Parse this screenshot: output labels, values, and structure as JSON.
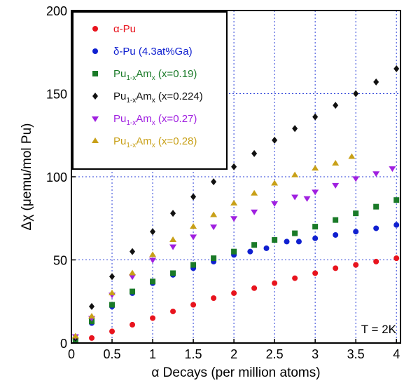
{
  "chart_data": {
    "type": "scatter",
    "xlabel": "α Decays (per million atoms)",
    "ylabel": "Δχ (μemu/mol Pu)",
    "xlim": [
      0,
      4.05
    ],
    "ylim": [
      0,
      200
    ],
    "xticks": [
      "0",
      "0.5",
      "1",
      "1.5",
      "2",
      "2.5",
      "3",
      "3.5",
      "4"
    ],
    "xtick_values": [
      0,
      0.5,
      1,
      1.5,
      2,
      2.5,
      3,
      3.5,
      4
    ],
    "yticks": [
      "0",
      "50",
      "100",
      "150",
      "200"
    ],
    "ytick_values": [
      0,
      50,
      100,
      150,
      200
    ],
    "grid": "dashed-blue",
    "legend_position": "top-left",
    "annotation": "T = 2K",
    "series": [
      {
        "name": "α-Pu",
        "prefix": "α-Pu",
        "sub1": "",
        "mid": "",
        "sub2": "",
        "suffix": "",
        "marker": "circle",
        "color": "#e8141e",
        "x": [
          0.25,
          0.5,
          0.75,
          1.0,
          1.25,
          1.5,
          1.75,
          2.0,
          2.25,
          2.5,
          2.75,
          3.0,
          3.25,
          3.5,
          3.75,
          4.0
        ],
        "y": [
          3,
          7,
          11,
          15,
          19,
          23,
          27,
          30,
          33,
          36,
          39,
          42,
          45,
          47,
          49,
          51
        ]
      },
      {
        "name": "δ-Pu (4.3at%Ga)",
        "prefix": "δ-Pu (4.3at%Ga)",
        "sub1": "",
        "mid": "",
        "sub2": "",
        "suffix": "",
        "marker": "circle",
        "color": "#1020d0",
        "x": [
          0.05,
          0.25,
          0.5,
          0.75,
          1.0,
          1.25,
          1.5,
          1.75,
          2.0,
          2.2,
          2.4,
          2.65,
          2.8,
          3.0,
          3.25,
          3.5,
          3.75,
          4.0
        ],
        "y": [
          2,
          12,
          22,
          30,
          36,
          41,
          45,
          49,
          53,
          55,
          57,
          61,
          61,
          63,
          65,
          67,
          69,
          71
        ]
      },
      {
        "name": "Pu1-xAmx (x=0.19)",
        "prefix": "Pu",
        "sub1": "1-x",
        "mid": "Am",
        "sub2": "x",
        "suffix": " (x=0.19)",
        "marker": "square",
        "color": "#1a7a28",
        "x": [
          0.05,
          0.25,
          0.5,
          0.75,
          1.0,
          1.25,
          1.5,
          1.75,
          2.0,
          2.25,
          2.5,
          2.75,
          3.0,
          3.25,
          3.5,
          3.75,
          4.0
        ],
        "y": [
          2,
          13,
          23,
          31,
          37,
          42,
          47,
          51,
          55,
          59,
          62,
          66,
          70,
          74,
          78,
          82,
          86
        ]
      },
      {
        "name": "Pu1-xAmx (x=0.224)",
        "prefix": "Pu",
        "sub1": "1-x",
        "mid": "Am",
        "sub2": "x",
        "suffix": " (x=0.224)",
        "marker": "diamond",
        "color": "#111111",
        "x": [
          0.05,
          0.25,
          0.5,
          0.75,
          1.0,
          1.25,
          1.5,
          1.75,
          2.0,
          2.25,
          2.5,
          2.75,
          3.0,
          3.25,
          3.5,
          3.75,
          4.0
        ],
        "y": [
          3,
          22,
          40,
          55,
          67,
          78,
          88,
          97,
          106,
          114,
          122,
          129,
          136,
          143,
          150,
          157,
          165
        ]
      },
      {
        "name": "Pu1-xAmx (x=0.27)",
        "prefix": "Pu",
        "sub1": "1-x",
        "mid": "Am",
        "sub2": "x",
        "suffix": " (x=0.27)",
        "marker": "triangle-down",
        "color": "#a020e0",
        "x": [
          0.05,
          0.25,
          0.5,
          0.75,
          1.0,
          1.25,
          1.5,
          1.75,
          2.0,
          2.25,
          2.5,
          2.75,
          2.9,
          3.0,
          3.25,
          3.5,
          3.75,
          3.95
        ],
        "y": [
          4,
          15,
          29,
          40,
          50,
          58,
          64,
          70,
          75,
          79,
          84,
          88,
          87,
          91,
          95,
          99,
          102,
          105
        ]
      },
      {
        "name": "Pu1-xAmx (x=0.28)",
        "prefix": "Pu",
        "sub1": "1-x",
        "mid": "Am",
        "sub2": "x",
        "suffix": " (x=0.28)",
        "marker": "triangle-up",
        "color": "#c8a018",
        "x": [
          0.05,
          0.25,
          0.5,
          0.75,
          1.0,
          1.25,
          1.5,
          1.75,
          2.0,
          2.25,
          2.5,
          2.75,
          3.0,
          3.25,
          3.45
        ],
        "y": [
          4,
          16,
          30,
          42,
          53,
          62,
          70,
          77,
          84,
          90,
          96,
          101,
          105,
          108,
          112
        ]
      }
    ]
  }
}
